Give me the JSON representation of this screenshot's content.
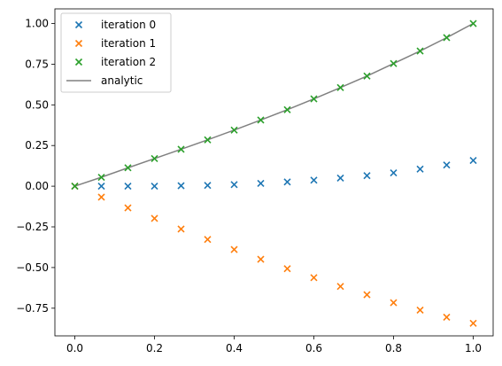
{
  "chart_data": {
    "type": "scatter",
    "title": "",
    "xlabel": "",
    "ylabel": "",
    "xlim": [
      -0.05,
      1.05
    ],
    "ylim": [
      -0.92,
      1.09
    ],
    "x": [
      0,
      0.0667,
      0.1333,
      0.2,
      0.2667,
      0.3333,
      0.4,
      0.4667,
      0.5333,
      0.6,
      0.6667,
      0.7333,
      0.8,
      0.8667,
      0.9333,
      1.0
    ],
    "xticks": [
      0.0,
      0.2,
      0.4,
      0.6,
      0.8,
      1.0
    ],
    "xtick_labels": [
      "0.0",
      "0.2",
      "0.4",
      "0.6",
      "0.8",
      "1.0"
    ],
    "yticks": [
      1.0,
      0.75,
      0.5,
      0.25,
      0.0,
      -0.25,
      -0.5,
      -0.75
    ],
    "ytick_labels": [
      "1.00",
      "0.75",
      "0.50",
      "0.25",
      "0.00",
      "−0.25",
      "−0.50",
      "−0.75"
    ],
    "grid": false,
    "legend_position": "top-left",
    "series": [
      {
        "name": "iteration 0",
        "kind": "scatter",
        "marker": "x",
        "color": "#1f77b4",
        "values": [
          0.0,
          0.0,
          0.0,
          0.0,
          0.003,
          0.005,
          0.01,
          0.017,
          0.026,
          0.037,
          0.05,
          0.065,
          0.082,
          0.105,
          0.13,
          0.158
        ]
      },
      {
        "name": "iteration 1",
        "kind": "scatter",
        "marker": "x",
        "color": "#ff7f0e",
        "values": [
          0.0,
          -0.067,
          -0.133,
          -0.198,
          -0.263,
          -0.327,
          -0.389,
          -0.449,
          -0.507,
          -0.562,
          -0.616,
          -0.667,
          -0.716,
          -0.762,
          -0.805,
          -0.843
        ]
      },
      {
        "name": "iteration 2",
        "kind": "scatter",
        "marker": "x",
        "color": "#2ca02c",
        "values": [
          0.0,
          0.055,
          0.113,
          0.17,
          0.227,
          0.285,
          0.345,
          0.407,
          0.47,
          0.537,
          0.606,
          0.677,
          0.754,
          0.831,
          0.913,
          1.0
        ]
      },
      {
        "name": "analytic",
        "kind": "line",
        "color": "#808080",
        "values": [
          0.0,
          0.055,
          0.113,
          0.17,
          0.227,
          0.285,
          0.345,
          0.407,
          0.47,
          0.537,
          0.606,
          0.677,
          0.754,
          0.831,
          0.913,
          1.0
        ]
      }
    ]
  }
}
